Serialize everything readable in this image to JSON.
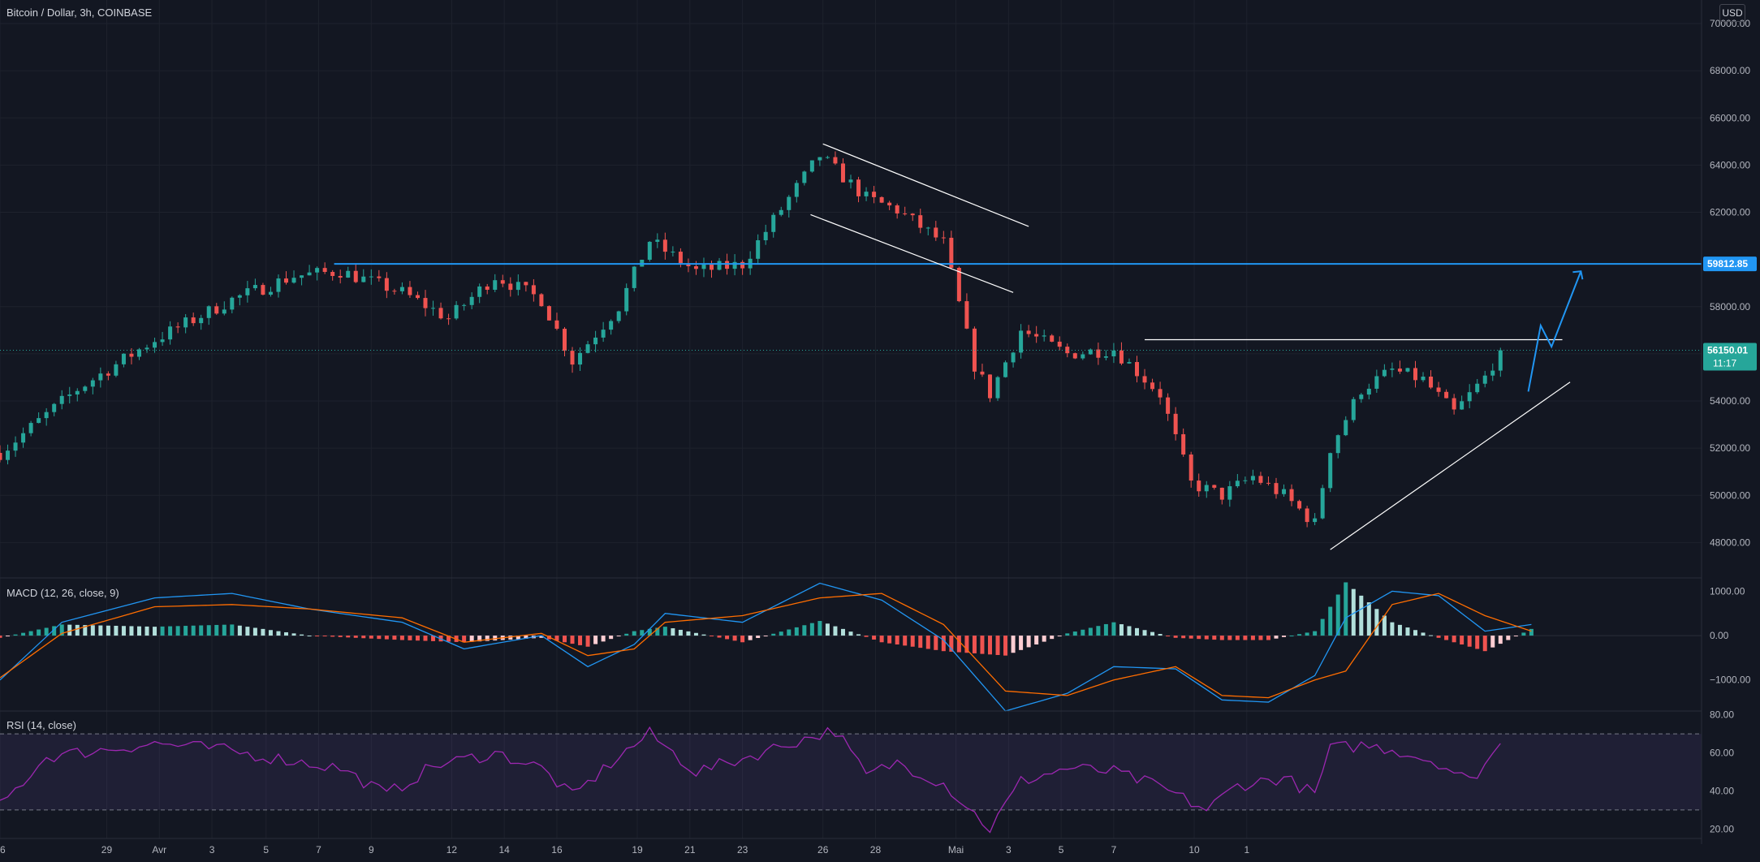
{
  "header": {
    "symbol_title": "Bitcoin / Dollar, 3h, COINBASE",
    "currency_label": "USD"
  },
  "colors": {
    "background": "#131722",
    "grid": "#1e222d",
    "bull": "#26a69a",
    "bear": "#ef5350",
    "blue": "#2196f3",
    "white_line": "#ffffff",
    "macd_line": "#2196f3",
    "signal_line": "#ff6d00",
    "rsi_line": "#9c27b0",
    "rsi_band": "#7e57c2"
  },
  "chart_data": [
    {
      "type": "candlestick",
      "title": "Bitcoin / Dollar, 3h, COINBASE",
      "ylim": [
        46500,
        71000
      ],
      "y_ticks": [
        "70000.00",
        "68000.00",
        "66000.00",
        "64000.00",
        "62000.00",
        "58000.00",
        "56000.00",
        "54000.00",
        "52000.00",
        "50000.00",
        "48000.00"
      ],
      "x_ticks": [
        "26",
        "29",
        "Avr",
        "3",
        "5",
        "7",
        "9",
        "12",
        "14",
        "16",
        "19",
        "21",
        "23",
        "26",
        "28",
        "Mai",
        "3",
        "5",
        "7",
        "10",
        "1"
      ],
      "price_path": [
        {
          "t": 0,
          "p": 51800
        },
        {
          "t": 5,
          "p": 54500
        },
        {
          "t": 10,
          "p": 56600
        },
        {
          "t": 15,
          "p": 58300
        },
        {
          "t": 19,
          "p": 59300
        },
        {
          "t": 22,
          "p": 59500
        },
        {
          "t": 26,
          "p": 58600
        },
        {
          "t": 29,
          "p": 57500
        },
        {
          "t": 32,
          "p": 59300
        },
        {
          "t": 35,
          "p": 58300
        },
        {
          "t": 37,
          "p": 55700
        },
        {
          "t": 40,
          "p": 58000
        },
        {
          "t": 42,
          "p": 60800
        },
        {
          "t": 45,
          "p": 59500
        },
        {
          "t": 48,
          "p": 59800
        },
        {
          "t": 51,
          "p": 62600
        },
        {
          "t": 53,
          "p": 64400
        },
        {
          "t": 56,
          "p": 62600
        },
        {
          "t": 58,
          "p": 62100
        },
        {
          "t": 61,
          "p": 60700
        },
        {
          "t": 63,
          "p": 55500
        },
        {
          "t": 64,
          "p": 54300
        },
        {
          "t": 66,
          "p": 57000
        },
        {
          "t": 69,
          "p": 56000
        },
        {
          "t": 72,
          "p": 56200
        },
        {
          "t": 75,
          "p": 54300
        },
        {
          "t": 77,
          "p": 50500
        },
        {
          "t": 79,
          "p": 50000
        },
        {
          "t": 81,
          "p": 50800
        },
        {
          "t": 83,
          "p": 50000
        },
        {
          "t": 85,
          "p": 48800
        },
        {
          "t": 86,
          "p": 52000
        },
        {
          "t": 88,
          "p": 54500
        },
        {
          "t": 90,
          "p": 55300
        },
        {
          "t": 92,
          "p": 54900
        },
        {
          "t": 94,
          "p": 53500
        },
        {
          "t": 96,
          "p": 55000
        },
        {
          "t": 97,
          "p": 56150
        }
      ],
      "price_labels": [
        {
          "value": "59812.85",
          "color": "#2196f3"
        },
        {
          "value": "56150.01",
          "sub": "11:17",
          "color": "#26a69a"
        }
      ],
      "horizontal_line": 59812.85,
      "trendlines": [
        {
          "from": [
            53.2,
            64900
          ],
          "to": [
            66.5,
            61400
          ],
          "color": "#ffffff"
        },
        {
          "from": [
            52.4,
            61900
          ],
          "to": [
            65.5,
            58600
          ],
          "color": "#ffffff"
        },
        {
          "from": [
            74,
            56600
          ],
          "to": [
            101,
            56600
          ],
          "color": "#ffffff"
        },
        {
          "from": [
            86,
            47700
          ],
          "to": [
            101.5,
            54800
          ],
          "color": "#ffffff"
        }
      ],
      "projection": [
        [
          98.8,
          54400
        ],
        [
          99.6,
          57200
        ],
        [
          100.3,
          56300
        ],
        [
          102.2,
          59500
        ]
      ]
    },
    {
      "type": "macd",
      "title": "MACD (12, 26, close, 9)",
      "ylim": [
        -1700,
        1300
      ],
      "y_ticks": [
        "1000.00",
        "0.00",
        "−1000.00"
      ],
      "macd_path": [
        {
          "t": 0,
          "v": -1000
        },
        {
          "t": 4,
          "v": 300
        },
        {
          "t": 10,
          "v": 850
        },
        {
          "t": 15,
          "v": 950
        },
        {
          "t": 20,
          "v": 600
        },
        {
          "t": 26,
          "v": 300
        },
        {
          "t": 30,
          "v": -300
        },
        {
          "t": 35,
          "v": 0
        },
        {
          "t": 38,
          "v": -700
        },
        {
          "t": 41,
          "v": -200
        },
        {
          "t": 43,
          "v": 500
        },
        {
          "t": 48,
          "v": 300
        },
        {
          "t": 53,
          "v": 1180
        },
        {
          "t": 57,
          "v": 800
        },
        {
          "t": 61,
          "v": -100
        },
        {
          "t": 65,
          "v": -1700
        },
        {
          "t": 69,
          "v": -1300
        },
        {
          "t": 72,
          "v": -700
        },
        {
          "t": 76,
          "v": -750
        },
        {
          "t": 79,
          "v": -1450
        },
        {
          "t": 82,
          "v": -1500
        },
        {
          "t": 85,
          "v": -900
        },
        {
          "t": 87,
          "v": 400
        },
        {
          "t": 90,
          "v": 1000
        },
        {
          "t": 93,
          "v": 900
        },
        {
          "t": 96,
          "v": 100
        },
        {
          "t": 99,
          "v": 250
        }
      ],
      "signal_path": [
        {
          "t": 0,
          "v": -950
        },
        {
          "t": 4,
          "v": 50
        },
        {
          "t": 10,
          "v": 650
        },
        {
          "t": 15,
          "v": 700
        },
        {
          "t": 20,
          "v": 600
        },
        {
          "t": 26,
          "v": 400
        },
        {
          "t": 30,
          "v": -150
        },
        {
          "t": 35,
          "v": 50
        },
        {
          "t": 38,
          "v": -450
        },
        {
          "t": 41,
          "v": -300
        },
        {
          "t": 43,
          "v": 300
        },
        {
          "t": 48,
          "v": 450
        },
        {
          "t": 53,
          "v": 850
        },
        {
          "t": 57,
          "v": 950
        },
        {
          "t": 61,
          "v": 250
        },
        {
          "t": 65,
          "v": -1250
        },
        {
          "t": 69,
          "v": -1350
        },
        {
          "t": 72,
          "v": -1000
        },
        {
          "t": 76,
          "v": -700
        },
        {
          "t": 79,
          "v": -1350
        },
        {
          "t": 82,
          "v": -1400
        },
        {
          "t": 85,
          "v": -1000
        },
        {
          "t": 87,
          "v": -800
        },
        {
          "t": 90,
          "v": 700
        },
        {
          "t": 93,
          "v": 950
        },
        {
          "t": 96,
          "v": 450
        },
        {
          "t": 99,
          "v": 100
        }
      ]
    },
    {
      "type": "rsi",
      "title": "RSI (14, close)",
      "ylim": [
        15,
        82
      ],
      "y_ticks": [
        "80.00",
        "60.00",
        "40.00",
        "20.00"
      ],
      "upper_band": 70,
      "lower_band": 30,
      "rsi_path": [
        {
          "t": 0,
          "v": 32
        },
        {
          "t": 3,
          "v": 58
        },
        {
          "t": 7,
          "v": 62
        },
        {
          "t": 10,
          "v": 65
        },
        {
          "t": 14,
          "v": 62
        },
        {
          "t": 18,
          "v": 57
        },
        {
          "t": 22,
          "v": 52
        },
        {
          "t": 25,
          "v": 38
        },
        {
          "t": 28,
          "v": 53
        },
        {
          "t": 32,
          "v": 60
        },
        {
          "t": 35,
          "v": 52
        },
        {
          "t": 37,
          "v": 37
        },
        {
          "t": 40,
          "v": 58
        },
        {
          "t": 42,
          "v": 70
        },
        {
          "t": 45,
          "v": 50
        },
        {
          "t": 48,
          "v": 57
        },
        {
          "t": 51,
          "v": 65
        },
        {
          "t": 54,
          "v": 72
        },
        {
          "t": 56,
          "v": 48
        },
        {
          "t": 58,
          "v": 55
        },
        {
          "t": 61,
          "v": 44
        },
        {
          "t": 64,
          "v": 20
        },
        {
          "t": 66,
          "v": 45
        },
        {
          "t": 69,
          "v": 52
        },
        {
          "t": 72,
          "v": 50
        },
        {
          "t": 75,
          "v": 42
        },
        {
          "t": 78,
          "v": 30
        },
        {
          "t": 80,
          "v": 43
        },
        {
          "t": 83,
          "v": 47
        },
        {
          "t": 85,
          "v": 38
        },
        {
          "t": 86,
          "v": 62
        },
        {
          "t": 88,
          "v": 64
        },
        {
          "t": 90,
          "v": 62
        },
        {
          "t": 93,
          "v": 55
        },
        {
          "t": 95,
          "v": 45
        },
        {
          "t": 97,
          "v": 64
        }
      ]
    }
  ]
}
